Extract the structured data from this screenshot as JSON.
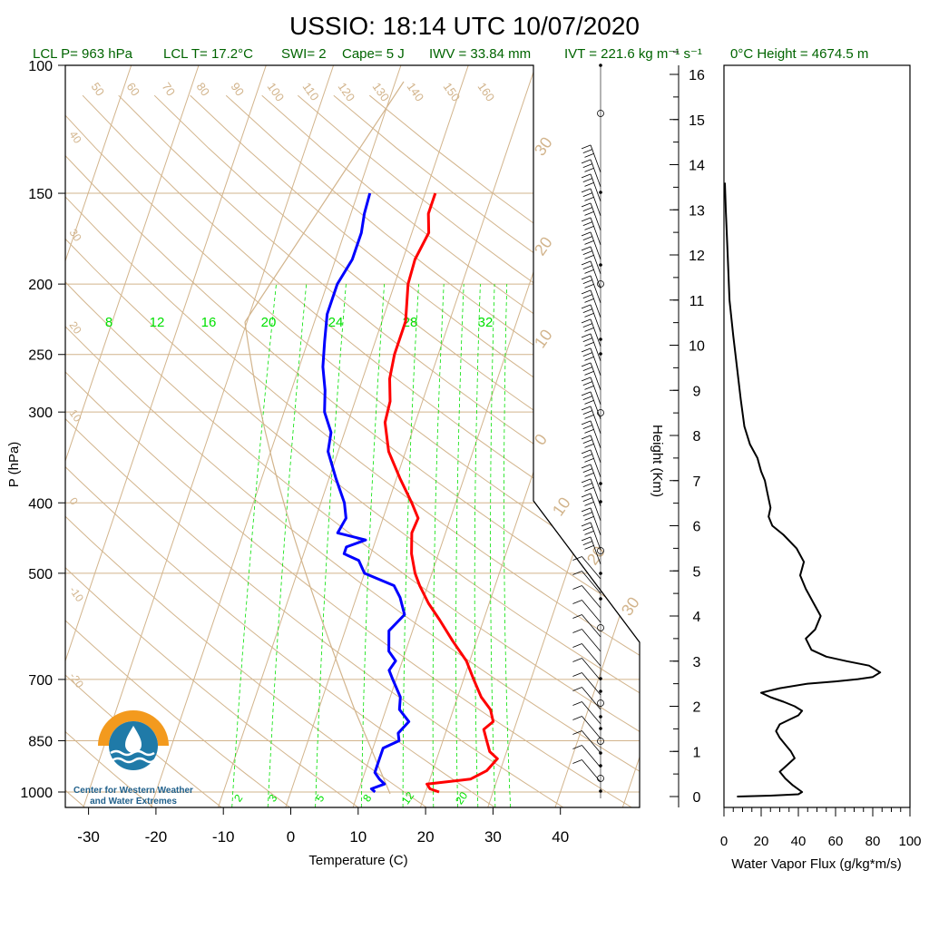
{
  "title": "USSIO: 18:14 UTC 10/07/2020",
  "subtitle": {
    "lcl_p": "LCL P= 963 hPa",
    "lcl_t": "LCL T= 17.2°C",
    "swi": "SWI= 2",
    "cape": "Cape= 5 J",
    "iwv": "IWV = 33.84 mm",
    "ivt": "IVT = 221.6 kg m⁻¹ s⁻¹",
    "freezing": "0°C Height = 4674.5 m"
  },
  "colors": {
    "temperature": "#ff0000",
    "dewpoint": "#0000ff",
    "isotherm": "#d2b48c",
    "mixing_ratio": "#00e000",
    "flux": "#000000",
    "subtitle": "#006400",
    "logo_orange": "#f39a1e",
    "logo_blue": "#1f7aa8"
  },
  "logo": {
    "line1": "Center for Western Weather",
    "line2": "and Water Extremes"
  },
  "chart_data": [
    {
      "type": "line",
      "name": "skew-t",
      "xlabel": "Temperature (C)",
      "ylabel": "P (hPa)",
      "xlim": [
        -33,
        52
      ],
      "ylim": [
        1050,
        100
      ],
      "log_y": true,
      "x_ticks": [
        -30,
        -20,
        -10,
        0,
        10,
        20,
        30,
        40
      ],
      "y_ticks": [
        100,
        150,
        200,
        250,
        300,
        400,
        500,
        700,
        850,
        1000
      ],
      "dry_adiabat_labels": [
        "50",
        "60",
        "70",
        "80",
        "90",
        "100",
        "110",
        "120",
        "130",
        "140",
        "150",
        "160"
      ],
      "isotherm_labels": [
        "40",
        "30",
        "20",
        "10",
        "0",
        "-10",
        "-20"
      ],
      "mixing_ratio_top_labels": [
        "8",
        "12",
        "16",
        "20",
        "24",
        "28",
        "32"
      ],
      "mixing_ratio_bottom_labels": [
        "2",
        "3",
        "5",
        "8",
        "12",
        "20"
      ],
      "wind_speed_labels": [
        "30",
        "20",
        "10",
        "0",
        "10",
        "20",
        "30"
      ],
      "temperature": {
        "p": [
          1000,
          990,
          975,
          960,
          935,
          900,
          880,
          850,
          820,
          800,
          770,
          740,
          700,
          660,
          620,
          580,
          550,
          520,
          500,
          470,
          440,
          420,
          400,
          370,
          340,
          310,
          290,
          270,
          250,
          225,
          200,
          185,
          170,
          160,
          150
        ],
        "t": [
          22,
          20.5,
          19.8,
          26,
          28,
          29,
          27.5,
          26.5,
          25.5,
          26.5,
          25.5,
          23.5,
          21.5,
          19.5,
          16.5,
          13.5,
          11,
          8.8,
          7.5,
          6,
          5,
          5.2,
          3.5,
          0.5,
          -2.5,
          -4.5,
          -4.8,
          -6,
          -6.5,
          -6.5,
          -8,
          -8.2,
          -7.5,
          -8.5,
          -8.5
        ]
      },
      "dewpoint": {
        "p": [
          1000,
          990,
          975,
          960,
          940,
          920,
          900,
          870,
          850,
          830,
          800,
          770,
          740,
          700,
          680,
          660,
          640,
          600,
          570,
          540,
          520,
          500,
          480,
          470,
          460,
          450,
          440,
          420,
          400,
          370,
          340,
          320,
          300,
          280,
          260,
          240,
          220,
          200,
          185,
          170,
          160,
          150
        ],
        "t": [
          12.5,
          11.8,
          13.5,
          12.5,
          11.5,
          11.5,
          11.5,
          11.5,
          13.5,
          13,
          14,
          12,
          11.5,
          9.5,
          8.5,
          9,
          7.5,
          6.5,
          8,
          6.5,
          5,
          0,
          -1.5,
          -4,
          -4,
          -1.5,
          -6,
          -5.5,
          -6.5,
          -9,
          -11.5,
          -12,
          -14,
          -15,
          -16.5,
          -17.5,
          -18.5,
          -18.5,
          -17.5,
          -17.5,
          -18,
          -18.2
        ]
      }
    },
    {
      "type": "line",
      "name": "water-vapor-flux",
      "xlabel": "Water Vapor Flux (g/kg*m/s)",
      "ylabel": "Height (Km)",
      "xlim": [
        0,
        100
      ],
      "ylim": [
        -0.2,
        16.5
      ],
      "x_ticks": [
        0,
        20,
        40,
        60,
        80,
        100
      ],
      "y_ticks": [
        0,
        1,
        2,
        3,
        4,
        5,
        6,
        7,
        8,
        9,
        10,
        11,
        12,
        13,
        14,
        15,
        16
      ],
      "x": [
        7,
        25,
        40,
        42,
        37,
        33,
        30,
        34,
        38,
        36,
        33,
        30,
        28,
        30,
        35,
        40,
        42,
        38,
        32,
        25,
        20,
        30,
        45,
        60,
        72,
        80,
        84,
        78,
        66,
        55,
        47,
        44,
        49,
        52,
        48,
        44,
        41,
        43,
        39,
        32,
        26,
        24,
        25,
        24,
        23,
        22,
        20,
        18,
        14,
        11,
        9,
        7,
        5,
        3,
        2,
        1,
        0.5
      ],
      "y": [
        0,
        0.02,
        0.05,
        0.1,
        0.25,
        0.4,
        0.55,
        0.7,
        0.85,
        1.0,
        1.15,
        1.3,
        1.45,
        1.6,
        1.7,
        1.8,
        1.9,
        2.0,
        2.1,
        2.2,
        2.3,
        2.4,
        2.5,
        2.55,
        2.6,
        2.65,
        2.75,
        2.9,
        3.0,
        3.1,
        3.25,
        3.5,
        3.7,
        4.0,
        4.3,
        4.6,
        4.9,
        5.2,
        5.5,
        5.8,
        6.0,
        6.2,
        6.4,
        6.6,
        6.8,
        7.0,
        7.2,
        7.5,
        7.8,
        8.2,
        8.8,
        9.5,
        10.2,
        11.0,
        12.0,
        13.0,
        13.6
      ]
    }
  ]
}
